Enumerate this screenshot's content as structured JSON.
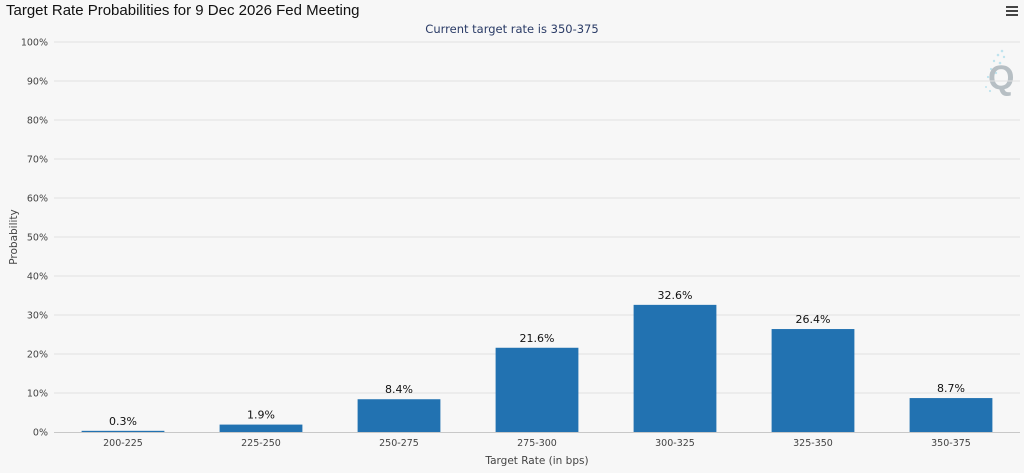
{
  "header": {
    "title": "Target Rate Probabilities for 9 Dec 2026 Fed Meeting",
    "subtitle": "Current target rate is 350-375"
  },
  "menu_icon": "hamburger-menu-icon",
  "logo_letter": "Q",
  "colors": {
    "bar": "#2272b1",
    "subtitle": "#2a3b66"
  },
  "chart_data": {
    "type": "bar",
    "title": "Target Rate Probabilities for 9 Dec 2026 Fed Meeting",
    "subtitle": "Current target rate is 350-375",
    "xlabel": "Target Rate (in bps)",
    "ylabel": "Probability",
    "categories": [
      "200-225",
      "225-250",
      "250-275",
      "275-300",
      "300-325",
      "325-350",
      "350-375"
    ],
    "values": [
      0.3,
      1.9,
      8.4,
      21.6,
      32.6,
      26.4,
      8.7
    ],
    "data_labels": [
      "0.3%",
      "1.9%",
      "8.4%",
      "21.6%",
      "32.6%",
      "26.4%",
      "8.7%"
    ],
    "ylim": [
      0,
      100
    ],
    "yticks": [
      "0%",
      "10%",
      "20%",
      "30%",
      "40%",
      "50%",
      "60%",
      "70%",
      "80%",
      "90%",
      "100%"
    ],
    "grid": true,
    "legend": false
  }
}
